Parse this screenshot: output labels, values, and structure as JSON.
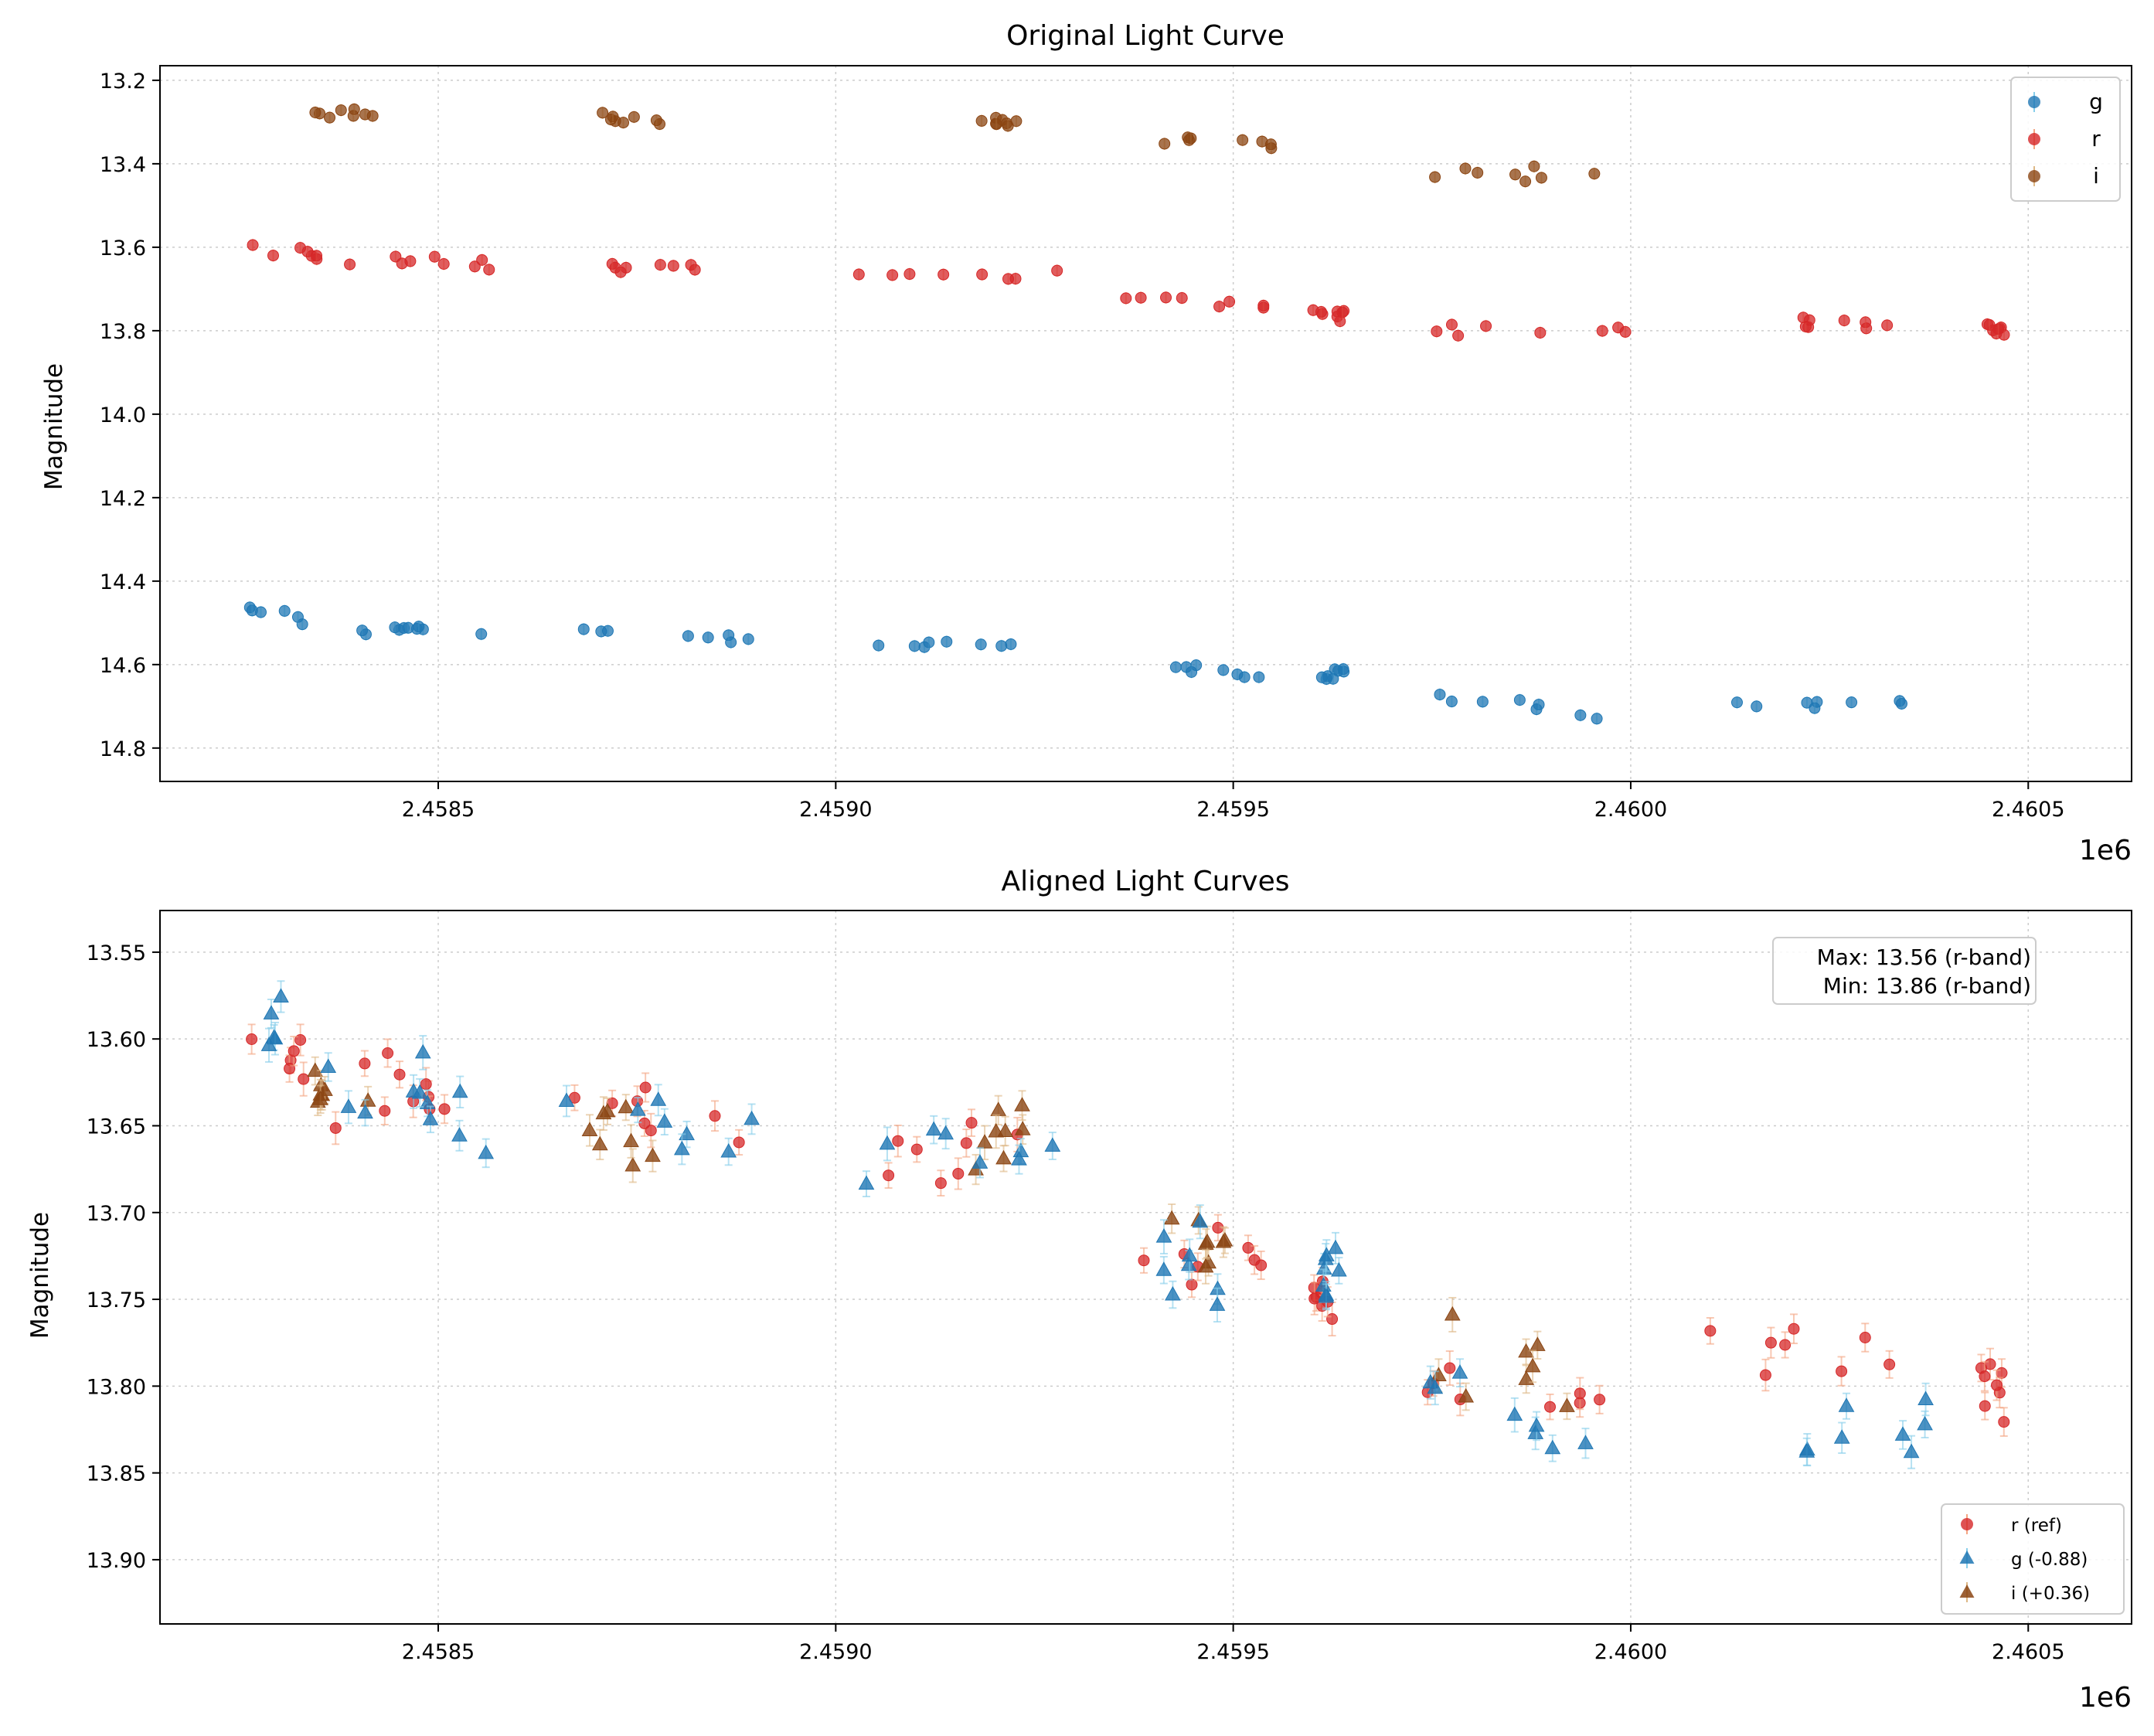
{
  "colors": {
    "g": "#1f77b4",
    "r": "#d62728",
    "i": "#8b4513",
    "g_err": "#87ceeb",
    "r_err": "#f4a582",
    "i_err": "#deb887"
  },
  "chart_data": [
    {
      "type": "scatter",
      "title": "Original Light Curve",
      "xlabel": "",
      "ylabel": "Magnitude",
      "x_offset_label": "1e6",
      "xlim": [
        2.45815,
        2.46063
      ],
      "ylim": [
        14.88,
        13.165
      ],
      "x_ticks": [
        2.4585,
        2.459,
        2.4595,
        2.46,
        2.4605
      ],
      "x_tick_labels": [
        "2.4585",
        "2.4590",
        "2.4595",
        "2.4600",
        "2.4605"
      ],
      "y_ticks": [
        13.2,
        13.4,
        13.6,
        13.8,
        14.0,
        14.2,
        14.4,
        14.6,
        14.8
      ],
      "y_tick_labels": [
        "13.2",
        "13.4",
        "13.6",
        "13.8",
        "14.0",
        "14.2",
        "14.4",
        "14.6",
        "14.8"
      ],
      "grid": true,
      "legend_position": "top-right",
      "legend": [
        "g",
        "r",
        "i"
      ],
      "series": [
        {
          "name": "g",
          "marker": "circle",
          "color": "g",
          "segments": [
            {
              "x": [
                2.45826,
                2.45841
              ],
              "y": [
                14.46,
                14.53
              ]
            },
            {
              "x": [
                2.45843,
                2.45856
              ],
              "y": [
                14.5,
                14.52
              ]
            },
            {
              "x": [
                2.45866,
                2.45891
              ],
              "y": [
                14.51,
                14.54
              ]
            },
            {
              "x": [
                2.45902,
                2.45928
              ],
              "y": [
                14.55,
                14.55
              ]
            },
            {
              "x": [
                2.45941,
                2.45955
              ],
              "y": [
                14.61,
                14.64
              ]
            },
            {
              "x": [
                2.45961,
                2.45964
              ],
              "y": [
                14.63,
                14.61
              ]
            },
            {
              "x": [
                2.45972,
                2.45999
              ],
              "y": [
                14.67,
                14.73
              ]
            },
            {
              "x": [
                2.46011,
                2.46038
              ],
              "y": [
                14.69,
                14.7
              ]
            }
          ]
        },
        {
          "name": "r",
          "marker": "circle",
          "color": "r",
          "segments": [
            {
              "x": [
                2.45826,
                2.45841
              ],
              "y": [
                13.59,
                13.64
              ]
            },
            {
              "x": [
                2.45843,
                2.45857
              ],
              "y": [
                13.63,
                13.64
              ]
            },
            {
              "x": [
                2.45866,
                2.45891
              ],
              "y": [
                13.64,
                13.66
              ]
            },
            {
              "x": [
                2.45902,
                2.45928
              ],
              "y": [
                13.67,
                13.66
              ]
            },
            {
              "x": [
                2.45936,
                2.45954
              ],
              "y": [
                13.72,
                13.74
              ]
            },
            {
              "x": [
                2.4596,
                2.45964
              ],
              "y": [
                13.74,
                13.76
              ]
            },
            {
              "x": [
                2.45972,
                2.46001
              ],
              "y": [
                13.79,
                13.8
              ]
            },
            {
              "x": [
                2.46009,
                2.46037
              ],
              "y": [
                13.77,
                13.79
              ]
            },
            {
              "x": [
                2.46044,
                2.46047
              ],
              "y": [
                13.79,
                13.8
              ]
            }
          ]
        },
        {
          "name": "i",
          "marker": "circle",
          "color": "i",
          "segments": [
            {
              "x": [
                2.45834,
                2.45843
              ],
              "y": [
                13.27,
                13.29
              ]
            },
            {
              "x": [
                2.45869,
                2.45878
              ],
              "y": [
                13.28,
                13.31
              ]
            },
            {
              "x": [
                2.45917,
                2.45924
              ],
              "y": [
                13.3,
                13.29
              ]
            },
            {
              "x": [
                2.45941,
                2.45955
              ],
              "y": [
                13.35,
                13.35
              ]
            },
            {
              "x": [
                2.45975,
                2.45996
              ],
              "y": [
                13.42,
                13.43
              ]
            }
          ]
        }
      ]
    },
    {
      "type": "scatter",
      "title": "Aligned Light Curves",
      "xlabel": "",
      "ylabel": "Magnitude",
      "x_offset_label": "1e6",
      "xlim": [
        2.45815,
        2.46063
      ],
      "ylim": [
        13.937,
        13.526
      ],
      "x_ticks": [
        2.4585,
        2.459,
        2.4595,
        2.46,
        2.4605
      ],
      "x_tick_labels": [
        "2.4585",
        "2.4590",
        "2.4595",
        "2.4600",
        "2.4605"
      ],
      "y_ticks": [
        13.55,
        13.6,
        13.65,
        13.7,
        13.75,
        13.8,
        13.85,
        13.9
      ],
      "y_tick_labels": [
        "13.55",
        "13.60",
        "13.65",
        "13.70",
        "13.75",
        "13.80",
        "13.85",
        "13.90"
      ],
      "grid": true,
      "legend_position": "bottom-right",
      "legend": [
        "r (ref)",
        "g (-0.88)",
        "i (+0.36)"
      ],
      "annotation": [
        "Max: 13.56 (r-band)",
        "Min: 13.86 (r-band)"
      ],
      "series": [
        {
          "name": "r (ref)",
          "marker": "circle",
          "color": "r",
          "segments": [
            {
              "x": [
                2.45826,
                2.45841
              ],
              "y": [
                13.59,
                13.64
              ]
            },
            {
              "x": [
                2.45843,
                2.45857
              ],
              "y": [
                13.63,
                13.64
              ]
            },
            {
              "x": [
                2.45866,
                2.45891
              ],
              "y": [
                13.64,
                13.66
              ]
            },
            {
              "x": [
                2.45902,
                2.45928
              ],
              "y": [
                13.67,
                13.66
              ]
            },
            {
              "x": [
                2.45936,
                2.45954
              ],
              "y": [
                13.72,
                13.74
              ]
            },
            {
              "x": [
                2.4596,
                2.45964
              ],
              "y": [
                13.74,
                13.76
              ]
            },
            {
              "x": [
                2.45972,
                2.46001
              ],
              "y": [
                13.79,
                13.8
              ]
            },
            {
              "x": [
                2.46009,
                2.46037
              ],
              "y": [
                13.77,
                13.79
              ]
            },
            {
              "x": [
                2.46044,
                2.46047
              ],
              "y": [
                13.79,
                13.8
              ]
            }
          ]
        },
        {
          "name": "g (-0.88)",
          "marker": "triangle",
          "color": "g",
          "segments": [
            {
              "x": [
                2.45826,
                2.45841
              ],
              "y": [
                13.58,
                13.65
              ]
            },
            {
              "x": [
                2.45843,
                2.45856
              ],
              "y": [
                13.62,
                13.64
              ]
            },
            {
              "x": [
                2.45866,
                2.45891
              ],
              "y": [
                13.63,
                13.66
              ]
            },
            {
              "x": [
                2.45902,
                2.45928
              ],
              "y": [
                13.67,
                13.67
              ]
            },
            {
              "x": [
                2.45941,
                2.45955
              ],
              "y": [
                13.73,
                13.76
              ]
            },
            {
              "x": [
                2.45961,
                2.45964
              ],
              "y": [
                13.75,
                13.73
              ]
            },
            {
              "x": [
                2.45972,
                2.45999
              ],
              "y": [
                13.79,
                13.85
              ]
            },
            {
              "x": [
                2.46011,
                2.46038
              ],
              "y": [
                13.81,
                13.82
              ]
            }
          ]
        },
        {
          "name": "i (+0.36)",
          "marker": "triangle",
          "color": "i",
          "segments": [
            {
              "x": [
                2.45834,
                2.45843
              ],
              "y": [
                13.63,
                13.65
              ]
            },
            {
              "x": [
                2.45869,
                2.45878
              ],
              "y": [
                13.64,
                13.67
              ]
            },
            {
              "x": [
                2.45917,
                2.45924
              ],
              "y": [
                13.66,
                13.65
              ]
            },
            {
              "x": [
                2.45941,
                2.45955
              ],
              "y": [
                13.71,
                13.71
              ]
            },
            {
              "x": [
                2.45975,
                2.45996
              ],
              "y": [
                13.78,
                13.79
              ]
            }
          ]
        }
      ]
    }
  ]
}
